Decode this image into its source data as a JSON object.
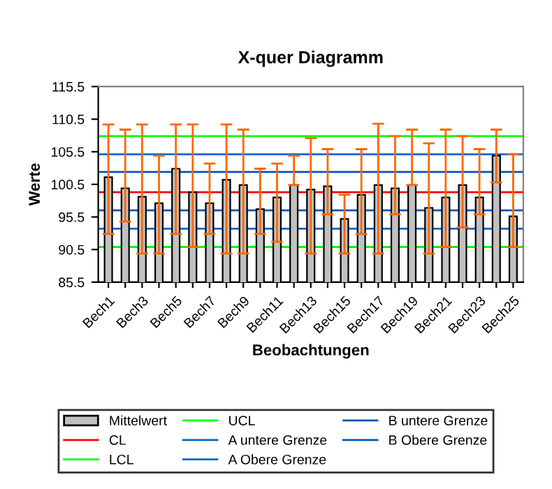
{
  "chart_data": {
    "type": "bar",
    "title": "X-quer Diagramm",
    "xlabel": "Beobachtungen",
    "ylabel": "Werte",
    "categories": [
      "Bech1",
      null,
      "Bech3",
      null,
      "Bech5",
      null,
      "Bech7",
      null,
      "Bech9",
      null,
      "Bech11",
      null,
      "Bech13",
      null,
      "Bech15",
      null,
      "Bech17",
      null,
      "Bech19",
      null,
      "Bech21",
      null,
      "Bech23",
      null,
      "Bech25"
    ],
    "series": [
      {
        "name": "Mittelwert",
        "color": "#c0c0c0",
        "values": [
          101.6,
          99.9,
          98.6,
          97.6,
          102.9,
          99.3,
          97.6,
          101.2,
          100.4,
          96.7,
          98.5,
          100.4,
          99.7,
          100.2,
          95.2,
          98.9,
          100.4,
          99.9,
          100.4,
          96.9,
          98.5,
          100.4,
          98.5,
          104.9,
          95.6
        ],
        "errors": [
          [
            92.9,
            109.7
          ],
          [
            94.8,
            108.9
          ],
          [
            89.9,
            109.7
          ],
          [
            89.9,
            104.9
          ],
          [
            92.9,
            109.7
          ],
          [
            90.9,
            109.7
          ],
          [
            92.9,
            103.7
          ],
          [
            89.9,
            109.7
          ],
          [
            89.9,
            108.9
          ],
          [
            92.9,
            102.9
          ],
          [
            91.7,
            103.7
          ],
          [
            100.4,
            104.9
          ],
          [
            89.9,
            107.6
          ],
          [
            95.9,
            105.9
          ],
          [
            89.9,
            98.9
          ],
          [
            92.9,
            105.9
          ],
          [
            89.9,
            109.8
          ],
          [
            95.9,
            107.9
          ],
          [
            100.4,
            108.9
          ],
          [
            89.9,
            106.8
          ],
          [
            90.9,
            108.9
          ],
          [
            93.9,
            107.9
          ],
          [
            95.9,
            105.9
          ],
          [
            100.8,
            108.9
          ],
          [
            90.9,
            105.1
          ]
        ]
      }
    ],
    "ref_lines": [
      {
        "axis": "y",
        "value": 99.3,
        "label": "CL",
        "color": "#ff0000"
      },
      {
        "axis": "y",
        "value": 90.9,
        "label": "LCL",
        "color": "#00ff00"
      },
      {
        "axis": "y",
        "value": 107.9,
        "label": "UCL",
        "color": "#00ff00"
      },
      {
        "axis": "y",
        "value": 93.7,
        "label": "A untere Grenze",
        "color": "#0066cc"
      },
      {
        "axis": "y",
        "value": 105.1,
        "label": "A Obere Grenze",
        "color": "#0066cc"
      },
      {
        "axis": "y",
        "value": 96.5,
        "label": "B untere Grenze",
        "color": "#0055bb"
      },
      {
        "axis": "y",
        "value": 102.4,
        "label": "B Obere Grenze",
        "color": "#0055bb"
      }
    ],
    "ylim": [
      85.5,
      115.5
    ],
    "yticks": [
      85.5,
      90.5,
      95.5,
      100.5,
      105.5,
      110.5,
      115.5
    ],
    "legend": "bottom"
  }
}
